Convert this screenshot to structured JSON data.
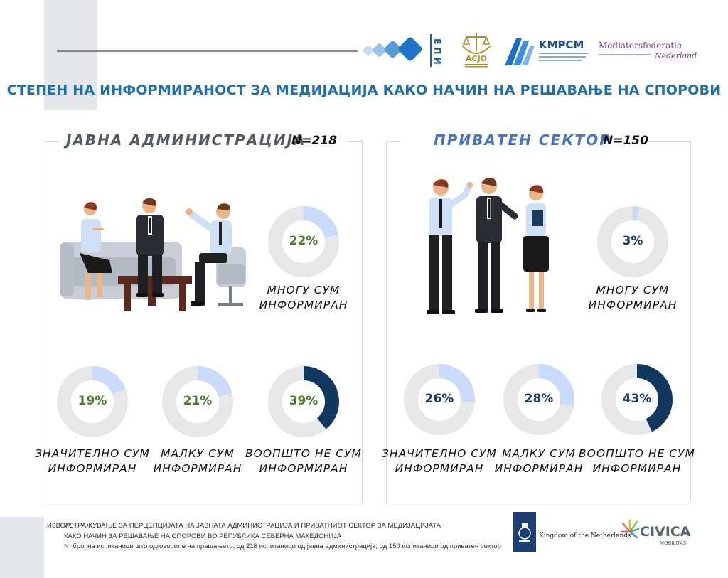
{
  "header": {
    "logo_epi_text": "Е П И",
    "logo_acjo_text": "ACJO",
    "logo_kmrsm_text": "KMPCM",
    "logo_mediators_line1": "Mediatorsfederatie",
    "logo_mediators_line2": "Nederland"
  },
  "main_title": "СТЕПЕН НА ИНФОРМИРАНОСТ ЗА МЕДИЈАЦИЈА КАКО НАЧИН НА РЕШАВАЊЕ НА СПОРОВИ",
  "panels": [
    {
      "title": "ЈАВНА АДМИНИСТРАЦИЈА",
      "n_label": "N=218",
      "title_color": "#555a60"
    },
    {
      "title": "ПРИВАТЕН СЕКТОР",
      "n_label": "N=150",
      "title_color": "#4a72c4"
    }
  ],
  "colors": {
    "donut_track": "#e6e7e9",
    "donut_light": "#c9dafb",
    "donut_dark": "#12385f",
    "value_green": "#4d7a2a",
    "value_navy": "#163a5f"
  },
  "chart_data": [
    {
      "type": "pie",
      "title": "ЈАВНА АДМИНИСТРАЦИЈА",
      "n": "N=218",
      "items": [
        {
          "label_line1": "МНОГУ СУМ",
          "label_line2": "ИНФОРМИРАН",
          "value": 22,
          "value_label": "22%"
        },
        {
          "label_line1": "ЗНАЧИТЕЛНО СУМ",
          "label_line2": "ИНФОРМИРАН",
          "value": 19,
          "value_label": "19%"
        },
        {
          "label_line1": "МАЛКУ СУМ",
          "label_line2": "ИНФОРМИРАН",
          "value": 21,
          "value_label": "21%"
        },
        {
          "label_line1": "ВООПШТО НЕ СУМ",
          "label_line2": "ИНФОРМИРАН",
          "value": 39,
          "value_label": "39%"
        }
      ]
    },
    {
      "type": "pie",
      "title": "ПРИВАТЕН СЕКТОР",
      "n": "N=150",
      "items": [
        {
          "label_line1": "МНОГУ СУМ",
          "label_line2": "ИНФОРМИРАН",
          "value": 3,
          "value_label": "3%"
        },
        {
          "label_line1": "ЗНАЧИТЕЛНО СУМ",
          "label_line2": "ИНФОРМИРАН",
          "value": 26,
          "value_label": "26%"
        },
        {
          "label_line1": "МАЛКУ СУМ",
          "label_line2": "ИНФОРМИРАН",
          "value": 28,
          "value_label": "28%"
        },
        {
          "label_line1": "ВООПШТО НЕ СУМ",
          "label_line2": "ИНФОРМИРАН",
          "value": 43,
          "value_label": "43%"
        }
      ]
    }
  ],
  "source": {
    "lead": "ИЗВОР:",
    "line1": "ИСТРАЖУВАЊЕ ЗА ПЕРЦЕПЦИЈАТА НА ЈАВНАТА АДМИНИСТРАЦИЈА И ПРИВАТНИОТ СЕКТОР ЗА МЕДИЈАЦИЈАТА",
    "line2": "КАКО НАЧИН ЗА РЕШАВАЊЕ НА СПОРОВИ ВО РЕПУБЛИКА СЕВЕРНА МАКЕДОНИЈА",
    "line3": "N=број на испитаници што одговориле на прашањето; од 218 испитаници од јавна администрација; од 150 испитаници од приватен сектор"
  },
  "footer": {
    "nl_text": "Kingdom of the Netherlands",
    "civica_line1": "CIVICA",
    "civica_line2": "MOBILITAS"
  }
}
